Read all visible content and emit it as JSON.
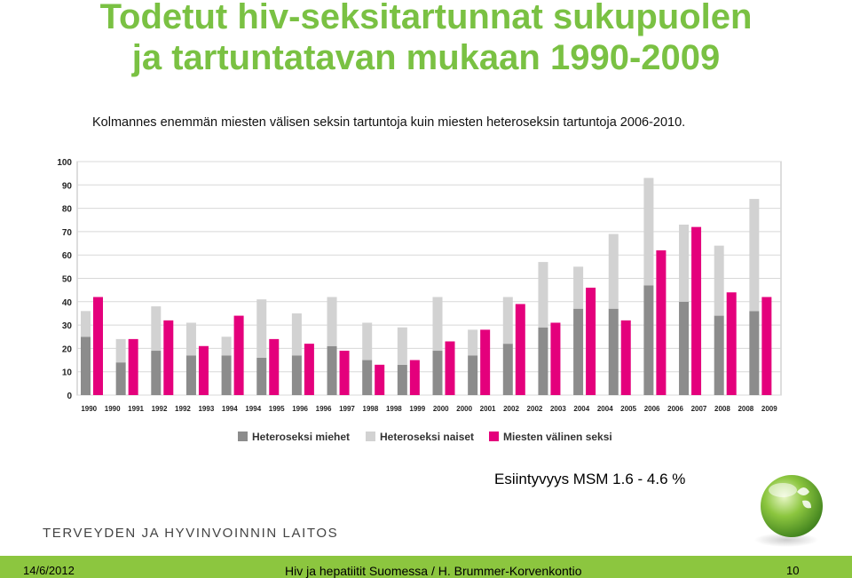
{
  "title_line1": "Todetut hiv-seksitartunnat sukupuolen",
  "title_line2": "ja tartuntatavan mukaan 1990-2009",
  "subtitle": "Kolmannes enemmän miesten välisen seksin tartuntoja kuin miesten heteroseksin tartuntoja 2006-2010.",
  "note": "Esiintyvyys MSM 1.6 - 4.6 %",
  "organization": "TERVEYDEN JA HYVINVOINNIN LAITOS",
  "footer": {
    "date": "14/6/2012",
    "center": "Hiv ja hepatiitit Suomessa / H. Brummer-Korvenkontio",
    "page": "10"
  },
  "colors": {
    "title": "#7ac143",
    "hetero_men": "#8c8c8c",
    "hetero_women": "#d2d2d2",
    "msm": "#e4007c",
    "footer": "#8cc63f"
  },
  "chart_data": {
    "type": "bar",
    "title": "",
    "xlabel": "",
    "ylabel": "",
    "ylim": [
      0,
      100
    ],
    "yticks": [
      0,
      10,
      20,
      30,
      40,
      50,
      60,
      70,
      80,
      90,
      100
    ],
    "grid": true,
    "legend_position": "bottom",
    "categories": [
      "1990",
      "1991",
      "1992",
      "1993",
      "1994",
      "1995",
      "1996",
      "1997",
      "1998",
      "1999",
      "2000",
      "2001",
      "2002",
      "2003",
      "2004",
      "2005",
      "2006",
      "2007",
      "2008",
      "2009"
    ],
    "x_tick_labels": [
      "1990",
      "1990",
      "1991",
      "1992",
      "1992",
      "1993",
      "1994",
      "1994",
      "1995",
      "1996",
      "1996",
      "1997",
      "1998",
      "1998",
      "1999",
      "2000",
      "2000",
      "2001",
      "2002",
      "2002",
      "2003",
      "2004",
      "2004",
      "2005",
      "2006",
      "2006",
      "2007",
      "2008",
      "2008",
      "2009"
    ],
    "stacked_series": [
      {
        "name": "Heteroseksi miehet",
        "values": [
          25,
          14,
          19,
          17,
          17,
          16,
          17,
          21,
          15,
          13,
          19,
          17,
          22,
          29,
          37,
          37,
          47,
          40,
          34,
          36
        ]
      },
      {
        "name": "Heteroseksi naiset",
        "values": [
          11,
          10,
          19,
          14,
          8,
          25,
          18,
          21,
          16,
          16,
          23,
          11,
          20,
          28,
          18,
          32,
          46,
          33,
          30,
          48
        ]
      }
    ],
    "series": [
      {
        "name": "Miesten välinen seksi",
        "values": [
          42,
          24,
          32,
          21,
          34,
          24,
          22,
          19,
          13,
          15,
          23,
          28,
          39,
          31,
          46,
          32,
          62,
          72,
          44,
          42
        ]
      }
    ]
  }
}
